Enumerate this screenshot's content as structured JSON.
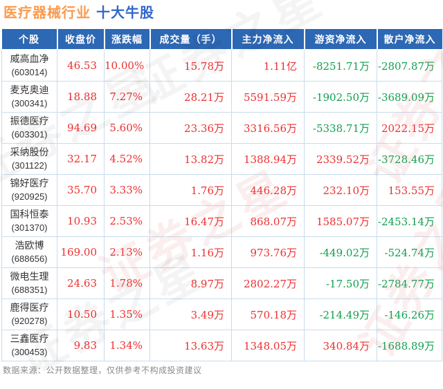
{
  "title": {
    "industry": "医疗器械行业",
    "suffix": "十大牛股"
  },
  "chart_data": {
    "type": "table",
    "title": "医疗器械行业 十大牛股",
    "columns": [
      "个股",
      "收盘价",
      "涨跌幅",
      "成交量（手）",
      "主力净流入",
      "游资净流入",
      "散户净流入"
    ],
    "rows": [
      {
        "name": "威高血净",
        "code": "(603014)",
        "close": "46.53",
        "change": "10.00%",
        "volume": "15.78万",
        "main_inflow": "1.11亿",
        "speculative_inflow": "-8251.71万",
        "retail_inflow": "-2807.87万"
      },
      {
        "name": "麦克奥迪",
        "code": "(300341)",
        "close": "18.88",
        "change": "7.27%",
        "volume": "28.21万",
        "main_inflow": "5591.59万",
        "speculative_inflow": "-1902.50万",
        "retail_inflow": "-3689.09万"
      },
      {
        "name": "振德医疗",
        "code": "(603301)",
        "close": "94.69",
        "change": "5.60%",
        "volume": "23.36万",
        "main_inflow": "3316.56万",
        "speculative_inflow": "-5338.71万",
        "retail_inflow": "2022.15万"
      },
      {
        "name": "采纳股份",
        "code": "(301122)",
        "close": "32.17",
        "change": "4.52%",
        "volume": "13.82万",
        "main_inflow": "1388.94万",
        "speculative_inflow": "2339.52万",
        "retail_inflow": "-3728.46万"
      },
      {
        "name": "锦好医疗",
        "code": "(920925)",
        "close": "35.70",
        "change": "3.33%",
        "volume": "1.76万",
        "main_inflow": "446.28万",
        "speculative_inflow": "232.10万",
        "retail_inflow": "153.55万"
      },
      {
        "name": "国科恒泰",
        "code": "(301370)",
        "close": "10.93",
        "change": "2.53%",
        "volume": "16.47万",
        "main_inflow": "868.07万",
        "speculative_inflow": "1585.07万",
        "retail_inflow": "-2453.14万"
      },
      {
        "name": "浩欧博",
        "code": "(688656)",
        "close": "169.00",
        "change": "2.13%",
        "volume": "1.16万",
        "main_inflow": "973.76万",
        "speculative_inflow": "-449.02万",
        "retail_inflow": "-524.74万"
      },
      {
        "name": "微电生理",
        "code": "(688351)",
        "close": "24.63",
        "change": "1.78%",
        "volume": "8.97万",
        "main_inflow": "2802.27万",
        "speculative_inflow": "-17.50万",
        "retail_inflow": "-2784.77万"
      },
      {
        "name": "鹿得医疗",
        "code": "(920278)",
        "close": "10.50",
        "change": "1.35%",
        "volume": "3.49万",
        "main_inflow": "570.18万",
        "speculative_inflow": "-214.49万",
        "retail_inflow": "-146.26万"
      },
      {
        "name": "三鑫医疗",
        "code": "(300453)",
        "close": "9.83",
        "change": "1.34%",
        "volume": "13.63万",
        "main_inflow": "1348.05万",
        "speculative_inflow": "340.84万",
        "retail_inflow": "-1688.89万"
      }
    ]
  },
  "footer": {
    "source_note": "数据来源：公开数据整理，仅供参考不构成投资建议"
  },
  "watermark": {
    "text": "证券之星"
  },
  "colors": {
    "up": "#ee2f2f",
    "down": "#10a04f",
    "header_bg": "#2d68b4",
    "border": "#c8dcec",
    "title_industry": "#fa9a4e",
    "title_suffix": "#3366cc"
  }
}
